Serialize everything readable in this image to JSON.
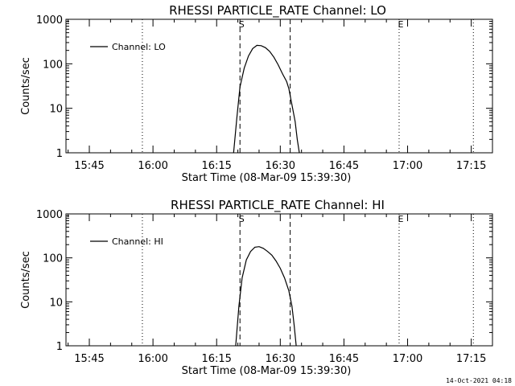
{
  "chart_data": [
    {
      "type": "line",
      "title": "RHESSI PARTICLE_RATE Channel: LO",
      "xlabel": "Start Time (08-Mar-09 15:39:30)",
      "ylabel": "Counts/sec",
      "yscale": "log",
      "ylim": [
        1,
        1000
      ],
      "xlim": [
        "15:39:30",
        "17:20:00"
      ],
      "x_ticks": [
        "15:45",
        "16:00",
        "16:15",
        "16:30",
        "16:45",
        "17:00",
        "17:15"
      ],
      "y_ticks": [
        "1",
        "10",
        "100",
        "1000"
      ],
      "legend": "top-left",
      "series": [
        {
          "name": "Channel: LO",
          "x": [
            "16:19:00",
            "16:19:45",
            "16:20:30",
            "16:21:30",
            "16:22:30",
            "16:23:30",
            "16:24:30",
            "16:25:30",
            "16:26:30",
            "16:27:30",
            "16:28:30",
            "16:29:30",
            "16:30:30",
            "16:31:30",
            "16:32:00",
            "16:32:45",
            "16:33:30",
            "16:34:00",
            "16:34:30"
          ],
          "y": [
            1,
            6,
            30,
            80,
            150,
            220,
            260,
            255,
            230,
            190,
            140,
            95,
            60,
            40,
            28,
            12,
            5,
            2,
            1
          ]
        }
      ],
      "markers": [
        {
          "type": "dotted",
          "time": "15:57:30"
        },
        {
          "type": "dashed",
          "time": "16:20:30",
          "label": "S"
        },
        {
          "type": "dashed",
          "time": "16:32:20"
        },
        {
          "type": "dotted",
          "time": "16:58:00",
          "label": "E"
        },
        {
          "type": "dotted",
          "time": "17:15:30"
        }
      ],
      "xlabel_marker_top": ""
    },
    {
      "type": "line",
      "title": "RHESSI PARTICLE_RATE Channel: HI",
      "xlabel": "Start Time (08-Mar-09 15:39:30)",
      "ylabel": "Counts/sec",
      "yscale": "log",
      "ylim": [
        1,
        1000
      ],
      "xlim": [
        "15:39:30",
        "17:20:00"
      ],
      "x_ticks": [
        "15:45",
        "16:00",
        "16:15",
        "16:30",
        "16:45",
        "17:00",
        "17:15"
      ],
      "y_ticks": [
        "1",
        "10",
        "100",
        "1000"
      ],
      "legend": "top-left",
      "series": [
        {
          "name": "Channel: HI",
          "x": [
            "16:19:30",
            "16:20:15",
            "16:21:00",
            "16:22:00",
            "16:23:00",
            "16:24:00",
            "16:25:00",
            "16:26:00",
            "16:27:00",
            "16:28:00",
            "16:29:00",
            "16:30:00",
            "16:31:00",
            "16:32:00",
            "16:32:45",
            "16:33:15",
            "16:33:45"
          ],
          "y": [
            1,
            8,
            35,
            90,
            140,
            175,
            180,
            165,
            140,
            115,
            85,
            58,
            35,
            18,
            8,
            3,
            1
          ]
        }
      ],
      "markers": [
        {
          "type": "dotted",
          "time": "15:57:30"
        },
        {
          "type": "dashed",
          "time": "16:20:30",
          "label": "S"
        },
        {
          "type": "dashed",
          "time": "16:32:20"
        },
        {
          "type": "dotted",
          "time": "16:58:00",
          "label": "E"
        },
        {
          "type": "dotted",
          "time": "17:15:30"
        }
      ]
    }
  ],
  "footer": {
    "timestamp": "14-Oct-2021 04:18"
  }
}
